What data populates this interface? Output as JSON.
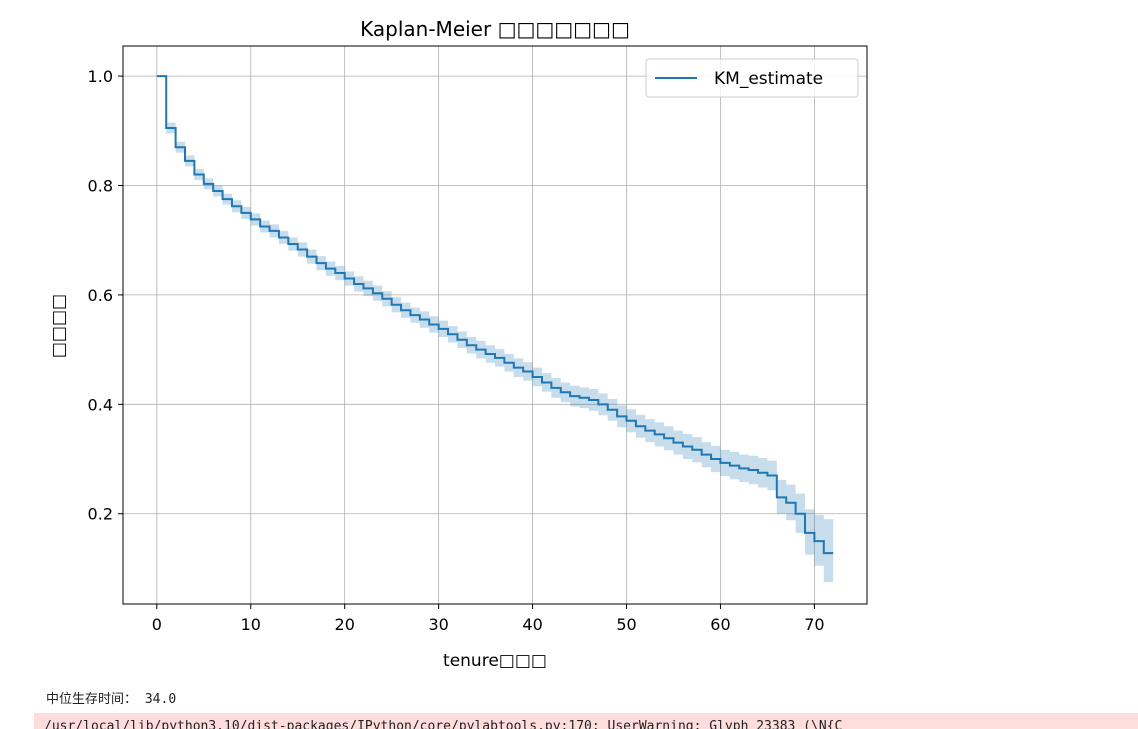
{
  "chart_data": {
    "type": "line",
    "title": "Kaplan-Meier □□□□□□□",
    "xlabel": "tenure□□□",
    "ylabel": "□□□□",
    "xlim": [
      -3.6,
      75.6
    ],
    "ylim": [
      0.035,
      1.055
    ],
    "x_ticks": [
      0,
      10,
      20,
      30,
      40,
      50,
      60,
      70
    ],
    "y_ticks": [
      0.2,
      0.4,
      0.6,
      0.8,
      1.0
    ],
    "x_tick_labels": [
      "0",
      "10",
      "20",
      "30",
      "40",
      "50",
      "60",
      "70"
    ],
    "y_tick_labels": [
      "0.2",
      "0.4",
      "0.6",
      "0.8",
      "1.0"
    ],
    "grid": true,
    "legend": {
      "position": "top-right",
      "entries": [
        "KM_estimate"
      ]
    },
    "colors": {
      "line": "#1f77b4",
      "band": "#1f77b4"
    },
    "series": [
      {
        "name": "KM_estimate",
        "style": "step-post",
        "x": [
          0,
          1,
          2,
          3,
          4,
          5,
          6,
          7,
          8,
          9,
          10,
          11,
          12,
          13,
          14,
          15,
          16,
          17,
          18,
          19,
          20,
          21,
          22,
          23,
          24,
          25,
          26,
          27,
          28,
          29,
          30,
          31,
          32,
          33,
          34,
          35,
          36,
          37,
          38,
          39,
          40,
          41,
          42,
          43,
          44,
          45,
          46,
          47,
          48,
          49,
          50,
          51,
          52,
          53,
          54,
          55,
          56,
          57,
          58,
          59,
          60,
          61,
          62,
          63,
          64,
          65,
          66,
          67,
          68,
          69,
          70,
          71,
          72
        ],
        "y": [
          1.0,
          0.905,
          0.87,
          0.845,
          0.82,
          0.803,
          0.79,
          0.775,
          0.762,
          0.75,
          0.738,
          0.725,
          0.717,
          0.705,
          0.693,
          0.683,
          0.67,
          0.658,
          0.648,
          0.64,
          0.63,
          0.62,
          0.612,
          0.603,
          0.593,
          0.582,
          0.572,
          0.563,
          0.555,
          0.546,
          0.538,
          0.528,
          0.518,
          0.508,
          0.5,
          0.492,
          0.485,
          0.476,
          0.467,
          0.46,
          0.45,
          0.44,
          0.43,
          0.422,
          0.415,
          0.412,
          0.408,
          0.4,
          0.39,
          0.378,
          0.37,
          0.36,
          0.352,
          0.345,
          0.338,
          0.33,
          0.323,
          0.317,
          0.308,
          0.3,
          0.293,
          0.288,
          0.283,
          0.28,
          0.275,
          0.27,
          0.23,
          0.22,
          0.2,
          0.165,
          0.15,
          0.128,
          0.128
        ],
        "ci_lower": [
          1.0,
          0.895,
          0.86,
          0.835,
          0.81,
          0.793,
          0.78,
          0.765,
          0.751,
          0.739,
          0.727,
          0.714,
          0.705,
          0.693,
          0.681,
          0.67,
          0.657,
          0.645,
          0.635,
          0.627,
          0.617,
          0.606,
          0.598,
          0.589,
          0.579,
          0.568,
          0.558,
          0.549,
          0.54,
          0.531,
          0.523,
          0.513,
          0.503,
          0.493,
          0.484,
          0.476,
          0.469,
          0.46,
          0.45,
          0.443,
          0.433,
          0.423,
          0.412,
          0.404,
          0.396,
          0.393,
          0.388,
          0.38,
          0.37,
          0.358,
          0.349,
          0.339,
          0.331,
          0.323,
          0.316,
          0.308,
          0.3,
          0.294,
          0.285,
          0.276,
          0.269,
          0.263,
          0.258,
          0.254,
          0.248,
          0.243,
          0.2,
          0.188,
          0.165,
          0.125,
          0.105,
          0.075,
          0.075
        ],
        "ci_upper": [
          1.0,
          0.915,
          0.88,
          0.855,
          0.83,
          0.813,
          0.8,
          0.785,
          0.773,
          0.761,
          0.749,
          0.736,
          0.729,
          0.717,
          0.705,
          0.696,
          0.683,
          0.671,
          0.661,
          0.653,
          0.643,
          0.634,
          0.626,
          0.617,
          0.607,
          0.596,
          0.586,
          0.577,
          0.57,
          0.561,
          0.553,
          0.543,
          0.533,
          0.523,
          0.516,
          0.508,
          0.501,
          0.492,
          0.484,
          0.477,
          0.467,
          0.457,
          0.448,
          0.44,
          0.434,
          0.431,
          0.428,
          0.42,
          0.41,
          0.398,
          0.391,
          0.381,
          0.373,
          0.367,
          0.36,
          0.352,
          0.346,
          0.34,
          0.331,
          0.324,
          0.317,
          0.313,
          0.308,
          0.306,
          0.302,
          0.297,
          0.262,
          0.253,
          0.237,
          0.208,
          0.198,
          0.19,
          0.19
        ]
      }
    ]
  },
  "output": {
    "stdout_label": "中位生存时间：",
    "stdout_value": " 34.0",
    "stderr_text": "/usr/local/lib/python3.10/dist-packages/IPython/core/pylabtools.py:170: UserWarning: Glyph 23383 (\\N{C"
  }
}
